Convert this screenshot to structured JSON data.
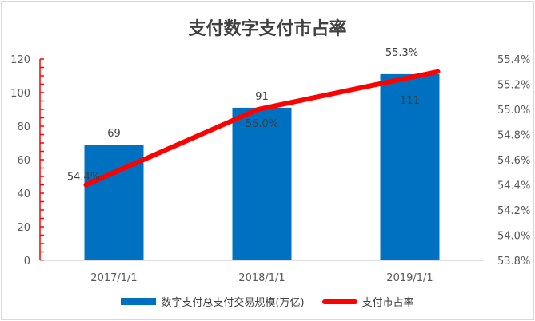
{
  "chart_data": {
    "type": "bar",
    "title": "支付数字支付市占率",
    "categories": [
      "2017/1/1",
      "2018/1/1",
      "2019/1/1"
    ],
    "series": [
      {
        "name": "数字支付总支付交易规模(万亿)",
        "type": "bar",
        "axis": "left",
        "values": [
          69,
          91,
          111
        ],
        "labels": [
          "69",
          "91",
          "111"
        ],
        "color": "#0070c0"
      },
      {
        "name": "支付市占率",
        "type": "line",
        "axis": "right",
        "values": [
          54.4,
          55.0,
          55.3
        ],
        "labels": [
          "54.4%",
          "55.0%",
          "55.3%"
        ],
        "color": "#ff0000"
      }
    ],
    "y_left": {
      "range": [
        0,
        120
      ],
      "ticks": [
        "0",
        "20",
        "40",
        "60",
        "80",
        "100",
        "120"
      ]
    },
    "y_right": {
      "range": [
        53.8,
        55.4
      ],
      "ticks": [
        "53.8%",
        "54.0%",
        "54.2%",
        "54.4%",
        "54.6%",
        "54.8%",
        "55.0%",
        "55.2%",
        "55.4%"
      ]
    },
    "grid": false,
    "legend_position": "bottom"
  }
}
